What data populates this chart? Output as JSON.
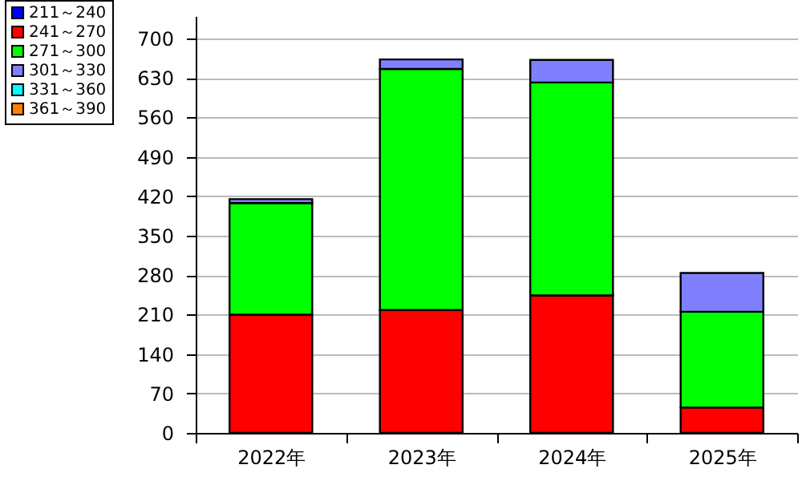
{
  "chart_data": {
    "type": "bar",
    "stacked": true,
    "categories": [
      "2022年",
      "2023年",
      "2024年",
      "2025年"
    ],
    "series": [
      {
        "name": "211～240",
        "color": "#0000ff",
        "values": [
          null,
          null,
          null,
          null
        ]
      },
      {
        "name": "241～270",
        "color": "#ff0000",
        "values": [
          210,
          218,
          244,
          45
        ]
      },
      {
        "name": "271～300",
        "color": "#00ff00",
        "values": [
          198,
          428,
          378,
          170
        ]
      },
      {
        "name": "301～330",
        "color": "#8080ff",
        "values": [
          7,
          17,
          40,
          69
        ]
      },
      {
        "name": "331～360",
        "color": "#00ffff",
        "values": [
          null,
          null,
          null,
          null
        ]
      },
      {
        "name": "361～390",
        "color": "#ff8000",
        "values": [
          null,
          null,
          null,
          null
        ]
      }
    ],
    "ylim": [
      0,
      740
    ],
    "yticks": [
      0,
      70,
      140,
      210,
      280,
      350,
      420,
      490,
      560,
      630,
      700
    ],
    "grid": "y",
    "legend": "left"
  }
}
